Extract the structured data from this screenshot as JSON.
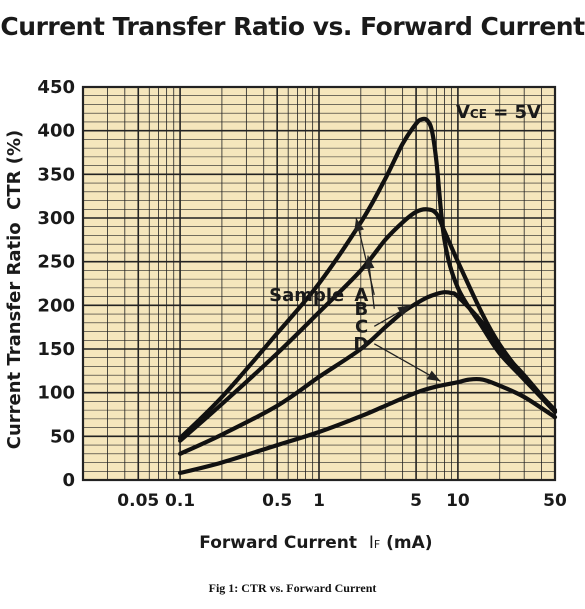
{
  "caption": "Fig 1: CTR vs. Forward Current",
  "colors": {
    "plot_background": "#f5e6bc",
    "grid": "#222222",
    "curves": "#111111",
    "arrows": "#222222"
  },
  "chart_data": {
    "type": "line",
    "title": "Current Transfer Ratio vs. Forward Current",
    "xlabel": "Forward Current",
    "xlabel_symbol": "I",
    "xlabel_subscript": "F",
    "xlabel_unit": "(mA)",
    "ylabel": "Current Transfer Ratio  CTR (%)",
    "x_scale": "log",
    "xlim": [
      0.02,
      50
    ],
    "ylim": [
      0,
      450
    ],
    "x_ticks": [
      {
        "value": 0.05,
        "label": "0.05"
      },
      {
        "value": 0.1,
        "label": "0.1"
      },
      {
        "value": 0.5,
        "label": "0.5"
      },
      {
        "value": 1,
        "label": "1"
      },
      {
        "value": 5,
        "label": "5"
      },
      {
        "value": 10,
        "label": "10"
      },
      {
        "value": 50,
        "label": "50"
      }
    ],
    "y_ticks": [
      0,
      50,
      100,
      150,
      200,
      250,
      300,
      350,
      400,
      450
    ],
    "grid": true,
    "annotation": {
      "main": "V",
      "sub": "CE",
      "rest": " = 5V"
    },
    "sample_label": "Sample",
    "series": [
      {
        "name": "A",
        "x": [
          0.1,
          0.2,
          0.5,
          1,
          2,
          3,
          4,
          5,
          5.5,
          6,
          6.5,
          7,
          8,
          10,
          15,
          20,
          30,
          50
        ],
        "y": [
          48,
          95,
          168,
          225,
          295,
          345,
          385,
          408,
          413,
          412,
          400,
          365,
          275,
          220,
          175,
          145,
          115,
          78
        ],
        "arrow": {
          "from": [
            2.5,
            212
          ],
          "to": [
            1.85,
            300
          ]
        }
      },
      {
        "name": "B",
        "x": [
          0.1,
          0.2,
          0.5,
          1,
          2,
          3,
          4,
          5,
          6,
          7,
          8,
          10,
          15,
          20,
          30,
          50
        ],
        "y": [
          45,
          87,
          145,
          192,
          240,
          275,
          295,
          307,
          310,
          305,
          285,
          250,
          190,
          155,
          118,
          80
        ],
        "arrow": {
          "from": [
            2.5,
            196
          ],
          "to": [
            2.25,
            257
          ]
        }
      },
      {
        "name": "C",
        "x": [
          0.1,
          0.2,
          0.5,
          1,
          2,
          3,
          4,
          5,
          6,
          7,
          8,
          9,
          10,
          15,
          20,
          30,
          50
        ],
        "y": [
          30,
          52,
          85,
          118,
          150,
          175,
          192,
          202,
          209,
          213,
          215,
          214,
          210,
          180,
          150,
          120,
          78
        ],
        "arrow": {
          "from": [
            2.5,
            176
          ],
          "to": [
            4.6,
            200
          ]
        }
      },
      {
        "name": "D",
        "x": [
          0.1,
          0.2,
          0.5,
          1,
          2,
          3,
          5,
          7,
          10,
          12,
          15,
          20,
          30,
          50
        ],
        "y": [
          8,
          20,
          40,
          55,
          73,
          85,
          100,
          107,
          112,
          115,
          115,
          108,
          95,
          72
        ],
        "arrow": {
          "from": [
            2.5,
            156
          ],
          "to": [
            7.5,
            113
          ]
        }
      }
    ]
  }
}
